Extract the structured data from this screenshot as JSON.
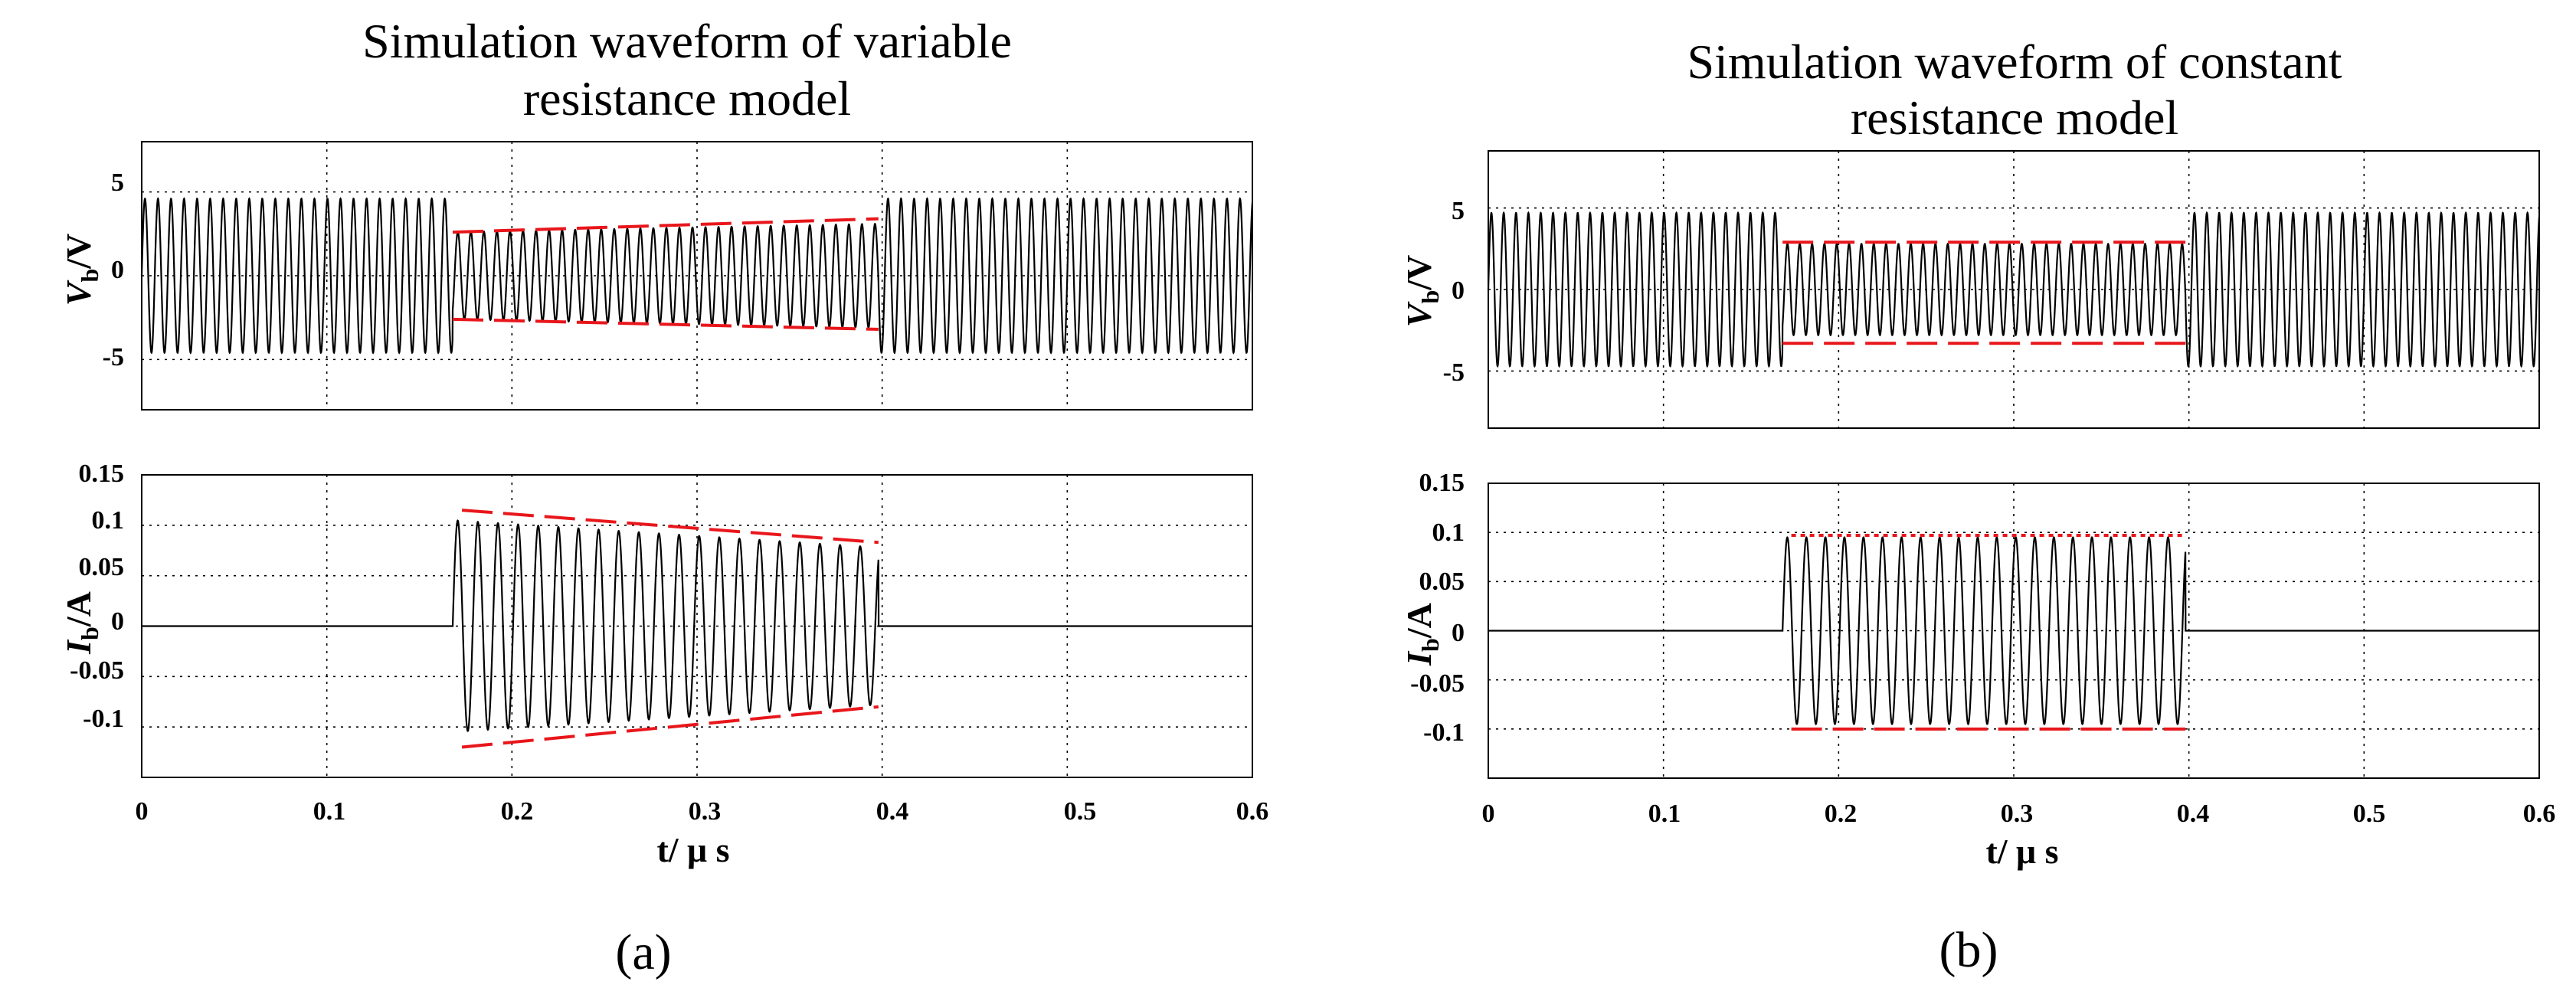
{
  "chart_data": [
    {
      "id": "a",
      "type": "line",
      "panel_label": "(a)",
      "title_lines": [
        "Simulation waveform of variable",
        "resistance model"
      ],
      "xlabel": "t/ μ s",
      "xlim": [
        0,
        0.6
      ],
      "xticks": [
        "0",
        "0.1",
        "0.2",
        "0.3",
        "0.4",
        "0.5",
        "0.6"
      ],
      "pulse_window": [
        0.168,
        0.398
      ],
      "top": {
        "ylabel_main": "V",
        "ylabel_sub": "b",
        "ylabel_unit": "/V",
        "ylim": [
          -8,
          8
        ],
        "yticks": [
          5,
          0,
          -5
        ],
        "ytick_labels": [
          "5",
          "0",
          "-5"
        ],
        "outside_amplitude": 4.6,
        "inside_amplitude_start": 2.6,
        "inside_amplitude_end": 3.1,
        "envelope_upper": [
          [
            0.168,
            2.6
          ],
          [
            0.398,
            3.4
          ]
        ],
        "envelope_lower": [
          [
            0.168,
            -2.6
          ],
          [
            0.398,
            -3.2
          ]
        ],
        "envelope_style": "dashed"
      },
      "bottom": {
        "ylabel_main": "I",
        "ylabel_sub": "b",
        "ylabel_unit": "/A",
        "ylim": [
          -0.15,
          0.15
        ],
        "yticks": [
          0.15,
          0.1,
          0.05,
          0,
          -0.05,
          -0.1
        ],
        "ytick_labels": [
          "0.15",
          "0.1",
          "0.05",
          "0",
          "-0.05",
          "-0.1"
        ],
        "inside_amplitude_start": 0.105,
        "inside_amplitude_end": 0.078,
        "envelope_upper": [
          [
            0.173,
            0.115
          ],
          [
            0.398,
            0.083
          ]
        ],
        "envelope_lower": [
          [
            0.173,
            -0.12
          ],
          [
            0.398,
            -0.08
          ]
        ],
        "envelope_style": "dashed"
      },
      "colors": {
        "envelope": "#e8161b",
        "signal": "#000000"
      }
    },
    {
      "id": "b",
      "type": "line",
      "panel_label": "(b)",
      "title_lines": [
        "Simulation waveform of constant",
        "resistance model"
      ],
      "xlabel": "t/ μ s",
      "xlim": [
        0,
        0.6
      ],
      "xticks": [
        "0",
        "0.1",
        "0.2",
        "0.3",
        "0.4",
        "0.5",
        "0.6"
      ],
      "pulse_window": [
        0.168,
        0.398
      ],
      "top": {
        "ylabel_main": "V",
        "ylabel_sub": "b",
        "ylabel_unit": "/V",
        "ylim": [
          -8.5,
          8.5
        ],
        "yticks": [
          5,
          0,
          -5
        ],
        "ytick_labels": [
          "5",
          "0",
          "-5"
        ],
        "outside_amplitude": 4.7,
        "inside_amplitude_start": 2.8,
        "inside_amplitude_end": 2.8,
        "envelope_upper": [
          [
            0.168,
            2.9
          ],
          [
            0.398,
            2.9
          ]
        ],
        "envelope_lower": [
          [
            0.168,
            -3.3
          ],
          [
            0.398,
            -3.3
          ]
        ],
        "envelope_style": "dashed"
      },
      "bottom": {
        "ylabel_main": "I",
        "ylabel_sub": "b",
        "ylabel_unit": "/A",
        "ylim": [
          -0.15,
          0.15
        ],
        "yticks": [
          0.15,
          0.1,
          0.05,
          0,
          -0.05,
          -0.1
        ],
        "ytick_labels": [
          "0.15",
          "0.1",
          "0.05",
          "0",
          "-0.05",
          "-0.1"
        ],
        "inside_amplitude_start": 0.095,
        "inside_amplitude_end": 0.095,
        "envelope_upper": [
          [
            0.173,
            0.097
          ],
          [
            0.398,
            0.097
          ]
        ],
        "envelope_lower": [
          [
            0.173,
            -0.1
          ],
          [
            0.398,
            -0.1
          ]
        ],
        "envelope_style": "dotted-upper-dashed-lower"
      },
      "colors": {
        "envelope": "#e8161b",
        "signal": "#000000"
      }
    }
  ]
}
